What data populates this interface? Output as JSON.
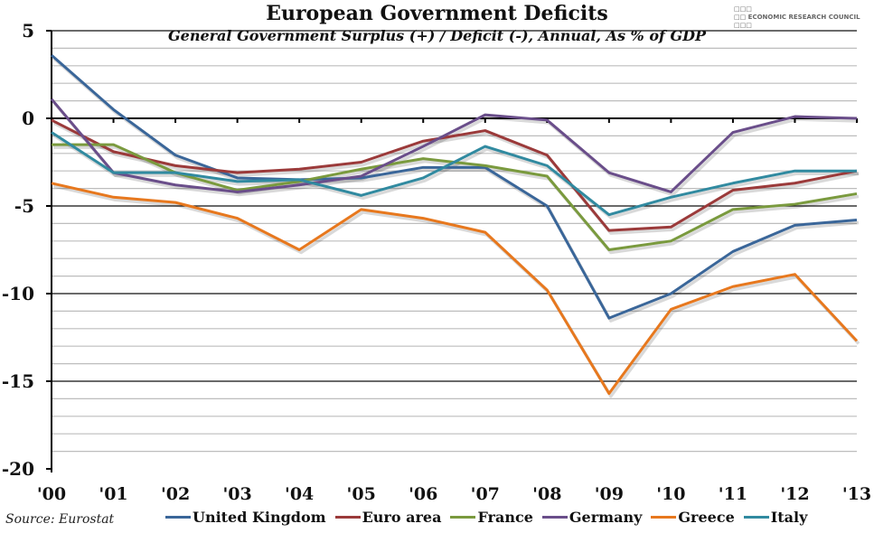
{
  "logo_text": "ECONOMIC RESEARCH COUNCIL",
  "source": "Source: Eurostat",
  "chart_data": {
    "type": "line",
    "title": "European Government Deficits",
    "subtitle": "General Government Surplus (+) / Deficit (-), Annual, As % of GDP",
    "xlabel": "",
    "ylabel": "",
    "x": [
      "'00",
      "'01",
      "'02",
      "'03",
      "'04",
      "'05",
      "'06",
      "'07",
      "'08",
      "'09",
      "'10",
      "'11",
      "'12",
      "'13"
    ],
    "ylim": [
      -20,
      5
    ],
    "yticks": [
      5,
      0,
      -5,
      -10,
      -15,
      -20
    ],
    "ytick_labels": [
      "5",
      "0",
      "-5",
      "-10",
      "-15",
      "-20"
    ],
    "grid": true,
    "legend_position": "bottom",
    "series": [
      {
        "name": "United Kingdom",
        "color": "#3a6699",
        "values": [
          3.6,
          0.5,
          -2.1,
          -3.4,
          -3.5,
          -3.4,
          -2.8,
          -2.8,
          -5.0,
          -11.4,
          -10.0,
          -7.6,
          -6.1,
          -5.8
        ]
      },
      {
        "name": "Euro area",
        "color": "#9b3a3a",
        "values": [
          -0.1,
          -1.9,
          -2.7,
          -3.1,
          -2.9,
          -2.5,
          -1.3,
          -0.7,
          -2.1,
          -6.4,
          -6.2,
          -4.1,
          -3.7,
          -3.0
        ]
      },
      {
        "name": "France",
        "color": "#7a9a3e",
        "values": [
          -1.5,
          -1.5,
          -3.1,
          -4.1,
          -3.6,
          -2.9,
          -2.3,
          -2.7,
          -3.3,
          -7.5,
          -7.0,
          -5.2,
          -4.9,
          -4.3
        ]
      },
      {
        "name": "Germany",
        "color": "#6a4e8a",
        "values": [
          1.1,
          -3.1,
          -3.8,
          -4.2,
          -3.8,
          -3.3,
          -1.6,
          0.2,
          -0.1,
          -3.1,
          -4.2,
          -0.8,
          0.1,
          0.0
        ]
      },
      {
        "name": "Greece",
        "color": "#e7781e",
        "values": [
          -3.7,
          -4.5,
          -4.8,
          -5.7,
          -7.5,
          -5.2,
          -5.7,
          -6.5,
          -9.8,
          -15.7,
          -10.9,
          -9.6,
          -8.9,
          -12.7
        ]
      },
      {
        "name": "Italy",
        "color": "#318aa0",
        "values": [
          -0.8,
          -3.1,
          -3.1,
          -3.6,
          -3.5,
          -4.4,
          -3.4,
          -1.6,
          -2.7,
          -5.5,
          -4.5,
          -3.7,
          -3.0,
          -3.0
        ]
      }
    ]
  }
}
